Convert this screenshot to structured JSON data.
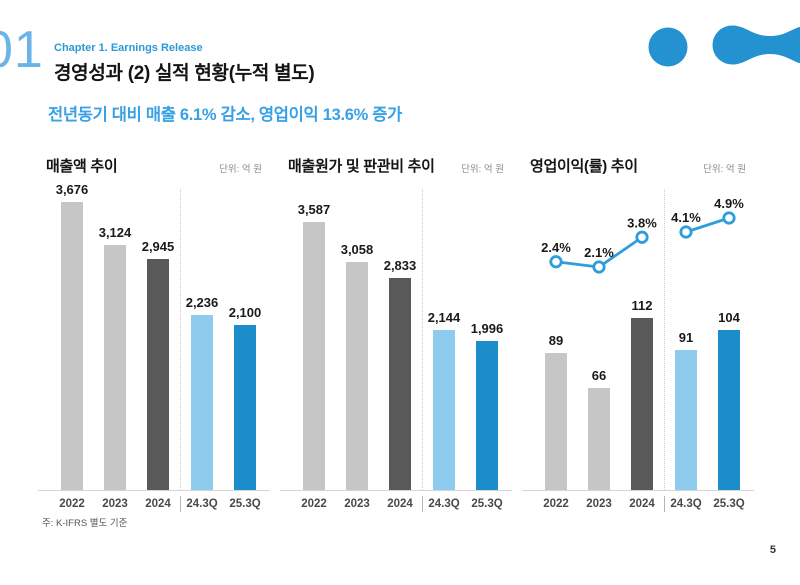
{
  "page": {
    "chapter_number": "01",
    "chapter_label": "Chapter 1. Earnings Release",
    "title": "경영성과 (2) 실적 현황(누적 별도)",
    "subtitle": "전년동기 대비 매출 6.1% 감소, 영업이익 13.6% 증가",
    "footnote": "주: K-IFRS 별도 기준",
    "page_number": "5"
  },
  "colors": {
    "accent_blue": "#2d9ad6",
    "subtitle_blue": "#38a1e6",
    "chapter_number_blue": "#6ab4e8",
    "logo_blue": "#2491d0",
    "bar_light_gray": "#c6c6c6",
    "bar_dark_gray": "#595959",
    "bar_light_blue": "#8ecbec",
    "bar_blue": "#1b8dca",
    "line_blue": "#2e9edb"
  },
  "chart_data": [
    {
      "type": "bar",
      "title": "매출액 추이",
      "unit_label": "단위: 억 원",
      "categories": [
        "2022",
        "2023",
        "2024",
        "24.3Q",
        "25.3Q"
      ],
      "values": [
        3676,
        3124,
        2945,
        2236,
        2100
      ],
      "value_labels": [
        "3,676",
        "3,124",
        "2,945",
        "2,236",
        "2,100"
      ],
      "bar_colors": [
        "#c6c6c6",
        "#c6c6c6",
        "#595959",
        "#8ecbec",
        "#1b8dca"
      ],
      "group_divider_after_index": 2,
      "ylim": [
        0,
        3900
      ],
      "grid": false,
      "legend": false
    },
    {
      "type": "bar",
      "title": "매출원가 및 판관비 추이",
      "unit_label": "단위: 억 원",
      "categories": [
        "2022",
        "2023",
        "2024",
        "24.3Q",
        "25.3Q"
      ],
      "values": [
        3587,
        3058,
        2833,
        2144,
        1996
      ],
      "value_labels": [
        "3,587",
        "3,058",
        "2,833",
        "2,144",
        "1,996"
      ],
      "bar_colors": [
        "#c6c6c6",
        "#c6c6c6",
        "#595959",
        "#8ecbec",
        "#1b8dca"
      ],
      "group_divider_after_index": 2,
      "ylim": [
        0,
        4080
      ],
      "grid": false,
      "legend": false
    },
    {
      "type": "bar+line",
      "title": "영업이익(률) 추이",
      "unit_label": "단위: 억 원",
      "categories": [
        "2022",
        "2023",
        "2024",
        "24.3Q",
        "25.3Q"
      ],
      "values": [
        89,
        66,
        112,
        91,
        104
      ],
      "value_labels": [
        "89",
        "66",
        "112",
        "91",
        "104"
      ],
      "bar_colors": [
        "#c6c6c6",
        "#c6c6c6",
        "#595959",
        "#8ecbec",
        "#1b8dca"
      ],
      "group_divider_after_index": 2,
      "ylim": [
        0,
        197
      ],
      "grid": false,
      "legend": false,
      "line_series": {
        "values_pct": [
          2.4,
          2.1,
          3.8,
          4.1,
          4.9
        ],
        "labels": [
          "2.4%",
          "2.1%",
          "3.8%",
          "4.1%",
          "4.9%"
        ],
        "segments": [
          [
            0,
            1,
            2
          ],
          [
            3,
            4
          ]
        ]
      }
    }
  ]
}
